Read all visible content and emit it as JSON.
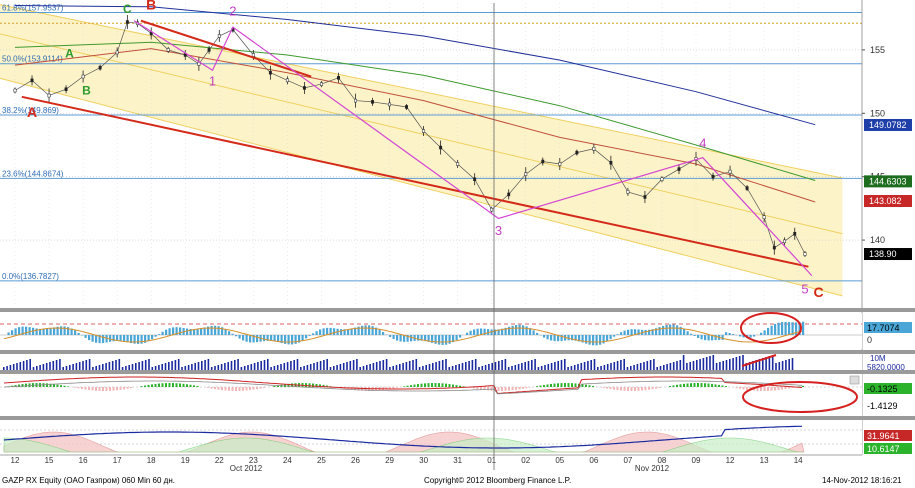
{
  "chart_data": {
    "type": "candlestick",
    "title": "",
    "xlabel": "",
    "ylabel": "",
    "ylim": [
      134.8,
      158.7
    ],
    "grid": true,
    "x_labels": [
      "12",
      "15",
      "16",
      "17",
      "18",
      "19",
      "22",
      "23",
      "24",
      "25",
      "26",
      "29",
      "30",
      "31",
      "01",
      "02",
      "05",
      "06",
      "07",
      "08",
      "09",
      "12",
      "13",
      "14"
    ],
    "month_labels": [
      "Oct 2012",
      "Nov 2012"
    ],
    "y_ticks": [
      140,
      145,
      150,
      155
    ],
    "price_series": [
      {
        "x": 0,
        "close": 151.8
      },
      {
        "x": 0.5,
        "close": 152.6
      },
      {
        "x": 1,
        "close": 151.4
      },
      {
        "x": 1.5,
        "close": 151.9
      },
      {
        "x": 2,
        "close": 152.9
      },
      {
        "x": 2.5,
        "close": 153.6
      },
      {
        "x": 3,
        "close": 154.8
      },
      {
        "x": 3.3,
        "close": 157.2
      },
      {
        "x": 3.6,
        "close": 157.1
      },
      {
        "x": 4,
        "close": 156.3
      },
      {
        "x": 4.5,
        "close": 155.0
      },
      {
        "x": 5,
        "close": 154.6
      },
      {
        "x": 5.4,
        "close": 153.9
      },
      {
        "x": 5.7,
        "close": 155.0
      },
      {
        "x": 6,
        "close": 156.1
      },
      {
        "x": 6.4,
        "close": 156.6
      },
      {
        "x": 7,
        "close": 154.6
      },
      {
        "x": 7.5,
        "close": 153.2
      },
      {
        "x": 8,
        "close": 152.6
      },
      {
        "x": 8.5,
        "close": 152.0
      },
      {
        "x": 9,
        "close": 152.3
      },
      {
        "x": 9.5,
        "close": 152.8
      },
      {
        "x": 10,
        "close": 151.0
      },
      {
        "x": 10.5,
        "close": 150.9
      },
      {
        "x": 11,
        "close": 150.7
      },
      {
        "x": 11.5,
        "close": 150.5
      },
      {
        "x": 12,
        "close": 148.6
      },
      {
        "x": 12.5,
        "close": 147.3
      },
      {
        "x": 13,
        "close": 146.0
      },
      {
        "x": 13.5,
        "close": 144.8
      },
      {
        "x": 14,
        "close": 142.4
      },
      {
        "x": 14.5,
        "close": 143.6
      },
      {
        "x": 15,
        "close": 145.2
      },
      {
        "x": 15.5,
        "close": 146.2
      },
      {
        "x": 16,
        "close": 146.0
      },
      {
        "x": 16.5,
        "close": 146.9
      },
      {
        "x": 17,
        "close": 147.2
      },
      {
        "x": 17.5,
        "close": 146.1
      },
      {
        "x": 18,
        "close": 143.8
      },
      {
        "x": 18.5,
        "close": 143.4
      },
      {
        "x": 19,
        "close": 144.8
      },
      {
        "x": 19.5,
        "close": 145.6
      },
      {
        "x": 20,
        "close": 146.4
      },
      {
        "x": 20.5,
        "close": 145.0
      },
      {
        "x": 21,
        "close": 145.4
      },
      {
        "x": 21.5,
        "close": 144.1
      },
      {
        "x": 22,
        "close": 141.8
      },
      {
        "x": 22.3,
        "close": 139.4
      },
      {
        "x": 22.6,
        "close": 139.9
      },
      {
        "x": 22.9,
        "close": 140.5
      },
      {
        "x": 23.2,
        "close": 138.9
      }
    ],
    "fib_levels": [
      {
        "label": "61.8%(157.9537)",
        "value": 157.9537
      },
      {
        "label": "50.0%(153.9114)",
        "value": 153.9114
      },
      {
        "label": "38.2%(149.869)",
        "value": 149.869
      },
      {
        "label": "23.6%(144.8674)",
        "value": 144.8674
      },
      {
        "label": "0.0%(136.7827)",
        "value": 136.7827
      }
    ],
    "orange_dotted_level": 157.1,
    "price_tags": [
      {
        "value": 149.0782,
        "text": "149.0782",
        "color": "#1f3fa8"
      },
      {
        "value": 144.6303,
        "text": "144.6303",
        "color": "#1e6d1e"
      },
      {
        "value": 143.082,
        "text": "143.082",
        "color": "#c62828"
      },
      {
        "value": 138.9,
        "text": "138.90",
        "color": "#000000"
      }
    ],
    "moving_averages": [
      {
        "color": "#1f2f9a",
        "points": [
          [
            0,
            158.5
          ],
          [
            4,
            158.4
          ],
          [
            8,
            157.4
          ],
          [
            12,
            156.1
          ],
          [
            16,
            154.2
          ],
          [
            20,
            151.7
          ],
          [
            23.5,
            149.1
          ]
        ]
      },
      {
        "color": "#3f9a2f",
        "points": [
          [
            0,
            155.2
          ],
          [
            4,
            155.6
          ],
          [
            8,
            154.6
          ],
          [
            12,
            153.0
          ],
          [
            16,
            150.6
          ],
          [
            20,
            147.5
          ],
          [
            23.5,
            144.7
          ]
        ]
      },
      {
        "color": "#c0503a",
        "points": [
          [
            0,
            153.8
          ],
          [
            4,
            155.1
          ],
          [
            8,
            153.2
          ],
          [
            12,
            151.0
          ],
          [
            16,
            148.1
          ],
          [
            20,
            146.0
          ],
          [
            23.5,
            143.0
          ]
        ]
      }
    ],
    "channel": {
      "upper": [
        [
          -0.5,
          158.6
        ],
        [
          24.3,
          144.9
        ]
      ],
      "middle": [
        [
          -0.5,
          156.3
        ],
        [
          24.3,
          140.5
        ]
      ],
      "lower": [
        [
          -0.5,
          152.8
        ],
        [
          24.3,
          135.6
        ]
      ],
      "fill_color": "#fdf3c8"
    },
    "trend_line": {
      "color": "#d42a1a",
      "from": [
        0.2,
        151.3
      ],
      "to": [
        23.3,
        137.9
      ]
    },
    "trend_top": {
      "color": "#d42a1a",
      "from": [
        3.7,
        157.3
      ],
      "to": [
        8.7,
        152.9
      ]
    },
    "wave_path": {
      "color": "#d445d4",
      "points": [
        [
          3.5,
          157.3
        ],
        [
          5.8,
          153.4
        ],
        [
          6.4,
          156.8
        ],
        [
          14.2,
          141.7
        ],
        [
          20.2,
          146.5
        ],
        [
          23.4,
          137.2
        ]
      ]
    },
    "wave_labels": [
      {
        "text": "1",
        "x": 5.8,
        "y": 152.2
      },
      {
        "text": "2",
        "x": 6.4,
        "y": 157.7
      },
      {
        "text": "3",
        "x": 14.2,
        "y": 140.4
      },
      {
        "text": "4",
        "x": 20.2,
        "y": 147.3
      },
      {
        "text": "5",
        "x": 23.2,
        "y": 135.8
      }
    ],
    "abc_labels": [
      {
        "text": "A",
        "x": 0.5,
        "y": 149.7,
        "color": "#d42a1a"
      },
      {
        "text": "B",
        "x": 4.0,
        "y": 158.2,
        "color": "#d42a1a"
      },
      {
        "text": "C",
        "x": 23.6,
        "y": 135.5,
        "color": "#d42a1a"
      },
      {
        "text": "A",
        "x": 1.6,
        "y": 154.4,
        "color": "#2f9a2f"
      },
      {
        "text": "B",
        "x": 2.1,
        "y": 151.5,
        "color": "#2f9a2f"
      },
      {
        "text": "C",
        "x": 3.3,
        "y": 157.9,
        "color": "#2f9a2f"
      }
    ],
    "indicator_panels": [
      {
        "name": "oscillator",
        "tags": [
          {
            "text": "17.7074",
            "color": "#4aa6d6"
          }
        ],
        "zero_label": "0"
      },
      {
        "name": "volume",
        "tags": [
          {
            "text": "10M",
            "color": "#1a2aa0"
          },
          {
            "text": "5820.0000",
            "color": "#1a2aa0"
          }
        ]
      },
      {
        "name": "macd",
        "tags": [
          {
            "text": "-0.1325",
            "color": "#2bb32b"
          },
          {
            "text": "-1.4129",
            "color": "#ffffff"
          }
        ]
      },
      {
        "name": "dmi",
        "tags": [
          {
            "text": "31.9641",
            "color": "#c62828"
          },
          {
            "text": "10.6147",
            "color": "#2bb32b"
          }
        ]
      }
    ]
  },
  "footer": {
    "left": "GAZP RX Equity (OAO Газпром) 060 Min 60 дн.",
    "center": "Copyright© 2012 Bloomberg Finance L.P.",
    "right": "14-Nov-2012 18:16:21"
  }
}
